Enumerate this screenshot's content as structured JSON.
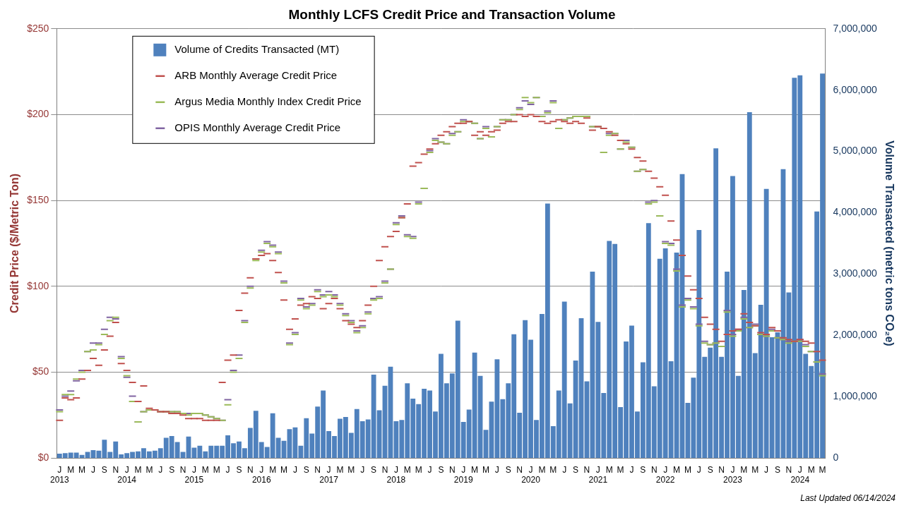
{
  "chart_data": {
    "type": "bar",
    "title": "Monthly LCFS Credit Price and Transaction Volume",
    "ylabel": "Credit Price ($/Metric Ton)",
    "y2label": "Volume Transacted (metric tons CO₂e)",
    "annotation": "Last Updated 06/14/2024",
    "categories": [
      [
        "J",
        "2013"
      ],
      null,
      "M",
      null,
      "M",
      null,
      "J",
      null,
      "S",
      null,
      "N",
      null,
      [
        "J",
        "2014"
      ],
      null,
      "M",
      null,
      "M",
      null,
      "J",
      null,
      "S",
      null,
      "N",
      null,
      [
        "J",
        "2015"
      ],
      null,
      "M",
      null,
      "M",
      null,
      "J",
      null,
      "S",
      null,
      "N",
      null,
      [
        "J",
        "2016"
      ],
      null,
      "M",
      null,
      "M",
      null,
      "J",
      null,
      "S",
      null,
      "N",
      null,
      [
        "J",
        "2017"
      ],
      null,
      "M",
      null,
      "M",
      null,
      "J",
      null,
      "S",
      null,
      "N",
      null,
      [
        "J",
        "2018"
      ],
      null,
      "M",
      null,
      "M",
      null,
      "J",
      null,
      "S",
      null,
      "N",
      null,
      [
        "J",
        "2019"
      ],
      null,
      "M",
      null,
      "M",
      null,
      "J",
      null,
      "S",
      null,
      "N",
      null,
      [
        "J",
        "2020"
      ],
      null,
      "M",
      null,
      "M",
      null,
      "J",
      null,
      "S",
      null,
      "N",
      null,
      [
        "J",
        "2021"
      ],
      null,
      "M",
      null,
      "M",
      null,
      "J",
      null,
      "S",
      null,
      "N",
      null,
      [
        "J",
        "2022"
      ],
      null,
      "M",
      null,
      "M",
      null,
      "J",
      null,
      "S",
      null,
      "N",
      null,
      [
        "J",
        "2023"
      ],
      null,
      "M",
      null,
      "M",
      null,
      "J",
      null,
      "S",
      null,
      "N",
      null,
      [
        "J",
        "2024"
      ],
      null,
      "M",
      null,
      "M"
    ],
    "series": [
      {
        "name": "Volume of Credits Transacted (MT)",
        "type": "bar",
        "axis": "y2",
        "color": "#4F81BD",
        "values": [
          70000,
          80000,
          90000,
          90000,
          50000,
          100000,
          130000,
          120000,
          300000,
          100000,
          270000,
          60000,
          80000,
          100000,
          110000,
          160000,
          110000,
          120000,
          160000,
          330000,
          360000,
          260000,
          100000,
          350000,
          170000,
          200000,
          110000,
          200000,
          200000,
          200000,
          370000,
          240000,
          270000,
          160000,
          490000,
          770000,
          260000,
          180000,
          730000,
          330000,
          280000,
          470000,
          500000,
          200000,
          650000,
          400000,
          840000,
          1100000,
          440000,
          360000,
          640000,
          670000,
          410000,
          800000,
          600000,
          630000,
          1360000,
          780000,
          1180000,
          1490000,
          600000,
          620000,
          1220000,
          970000,
          880000,
          1130000,
          1100000,
          760000,
          1700000,
          1220000,
          1380000,
          2240000,
          590000,
          790000,
          1720000,
          1340000,
          460000,
          920000,
          1610000,
          960000,
          1220000,
          2020000,
          740000,
          2250000,
          1930000,
          620000,
          2350000,
          4150000,
          520000,
          1100000,
          2550000,
          890000,
          1590000,
          2280000,
          1250000,
          3040000,
          2220000,
          1060000,
          3540000,
          3490000,
          830000,
          1900000,
          2160000,
          760000,
          1560000,
          3830000,
          1170000,
          3250000,
          3420000,
          1580000,
          3350000,
          4630000,
          900000,
          1310000,
          3720000,
          1650000,
          1800000,
          5050000,
          1650000,
          3040000,
          4600000,
          1340000,
          2740000,
          5640000,
          1710000,
          2500000,
          4390000,
          1970000,
          2050000,
          4710000,
          2700000,
          6200000,
          6240000,
          1700000,
          1500000,
          4020000,
          6270000
        ]
      },
      {
        "name": "ARB Monthly Average Credit Price",
        "type": "line",
        "color": "#C0504D",
        "marker": "line",
        "line_style": "none",
        "values": [
          22,
          35,
          34,
          35,
          46,
          51,
          58,
          54,
          63,
          71,
          79,
          55,
          51,
          44,
          33,
          42,
          29,
          28,
          27,
          27,
          26,
          26,
          25,
          23,
          23,
          23,
          22,
          22,
          22,
          44,
          57,
          60,
          86,
          96,
          105,
          116,
          118,
          119,
          115,
          108,
          92,
          75,
          81,
          89,
          90,
          94,
          93,
          87,
          90,
          93,
          87,
          80,
          78,
          76,
          80,
          89,
          100,
          115,
          123,
          129,
          132,
          140,
          148,
          170,
          172,
          177,
          180,
          183,
          188,
          190,
          193,
          195,
          195,
          196,
          188,
          190,
          188,
          190,
          191,
          195,
          196,
          196,
          200,
          199,
          200,
          199,
          196,
          195,
          196,
          197,
          196,
          195,
          196,
          195,
          198,
          191,
          193,
          192,
          190,
          188,
          185,
          183,
          180,
          175,
          173,
          167,
          163,
          158,
          153,
          138,
          127,
          118,
          106,
          98,
          93,
          82,
          78,
          75,
          68,
          72,
          74,
          75,
          84,
          79,
          77,
          73,
          72,
          76,
          74,
          70,
          69,
          68,
          69,
          68,
          67,
          62,
          57
        ]
      },
      {
        "name": "Argus Media Monthly Index Credit Price",
        "type": "line",
        "color": "#9BBB59",
        "marker": "line",
        "line_style": "none",
        "values": [
          27,
          37,
          37,
          46,
          50,
          62,
          63,
          66,
          72,
          80,
          82,
          58,
          48,
          33,
          21,
          27,
          28,
          28,
          27,
          27,
          27,
          27,
          26,
          25,
          26,
          26,
          25,
          24,
          23,
          22,
          31,
          50,
          58,
          79,
          99,
          115,
          120,
          125,
          123,
          119,
          102,
          66,
          72,
          92,
          87,
          89,
          97,
          94,
          95,
          94,
          89,
          83,
          79,
          73,
          76,
          84,
          92,
          93,
          102,
          110,
          136,
          140,
          129,
          128,
          148,
          157,
          178,
          185,
          184,
          183,
          188,
          190,
          196,
          196,
          195,
          186,
          192,
          187,
          193,
          197,
          197,
          200,
          203,
          210,
          207,
          210,
          199,
          201,
          207,
          192,
          197,
          198,
          199,
          199,
          199,
          193,
          193,
          178,
          188,
          189,
          180,
          184,
          181,
          167,
          168,
          148,
          149,
          141,
          125,
          124,
          109,
          88,
          92,
          87,
          77,
          67,
          66,
          67,
          65,
          85,
          71,
          74,
          81,
          76,
          77,
          72,
          71,
          74,
          70,
          69,
          67,
          68,
          68,
          65,
          62,
          56,
          48
        ]
      },
      {
        "name": "OPIS Monthly Average Credit Price",
        "type": "line",
        "color": "#8064A2",
        "marker": "line",
        "line_style": "none",
        "values": [
          28,
          36,
          39,
          45,
          51,
          62,
          67,
          67,
          75,
          82,
          81,
          59,
          47,
          36,
          21,
          27,
          28,
          28,
          27,
          27,
          27,
          27,
          26,
          26,
          26,
          26,
          25,
          24,
          23,
          22,
          34,
          51,
          60,
          80,
          100,
          116,
          121,
          126,
          124,
          120,
          103,
          67,
          73,
          93,
          88,
          90,
          98,
          95,
          97,
          95,
          90,
          84,
          80,
          74,
          77,
          85,
          93,
          94,
          103,
          110,
          137,
          141,
          130,
          129,
          149,
          157,
          179,
          186,
          184,
          183,
          189,
          190,
          197,
          196,
          195,
          186,
          193,
          187,
          193,
          197,
          197,
          200,
          204,
          208,
          206,
          210,
          199,
          202,
          208,
          192,
          197,
          198,
          199,
          199,
          199,
          193,
          193,
          178,
          189,
          189,
          180,
          185,
          181,
          167,
          168,
          149,
          150,
          141,
          126,
          125,
          110,
          89,
          93,
          88,
          78,
          68,
          66,
          67,
          65,
          86,
          72,
          75,
          82,
          76,
          78,
          72,
          71,
          75,
          70,
          69,
          68,
          68,
          69,
          66,
          62,
          56,
          49
        ]
      }
    ],
    "ylim": [
      0,
      250
    ],
    "yticks": [
      {
        "value": 0,
        "label": "$0"
      },
      {
        "value": 50,
        "label": "$50"
      },
      {
        "value": 100,
        "label": "$100"
      },
      {
        "value": 150,
        "label": "$150"
      },
      {
        "value": 200,
        "label": "$200"
      },
      {
        "value": 250,
        "label": "$250"
      }
    ],
    "y2lim": [
      0,
      7000000
    ],
    "y2ticks": [
      0,
      {
        "value": 1000000,
        "label": "1,000,000"
      },
      {
        "value": 2000000,
        "label": "2,000,000"
      },
      {
        "value": 3000000,
        "label": "3,000,000"
      },
      {
        "value": 4000000,
        "label": "4,000,000"
      },
      {
        "value": 5000000,
        "label": "5,000,000"
      },
      {
        "value": 6000000,
        "label": "6,000,000"
      },
      {
        "value": 7000000,
        "label": "7,000,000"
      }
    ],
    "grid": true,
    "legend": "upper left"
  }
}
